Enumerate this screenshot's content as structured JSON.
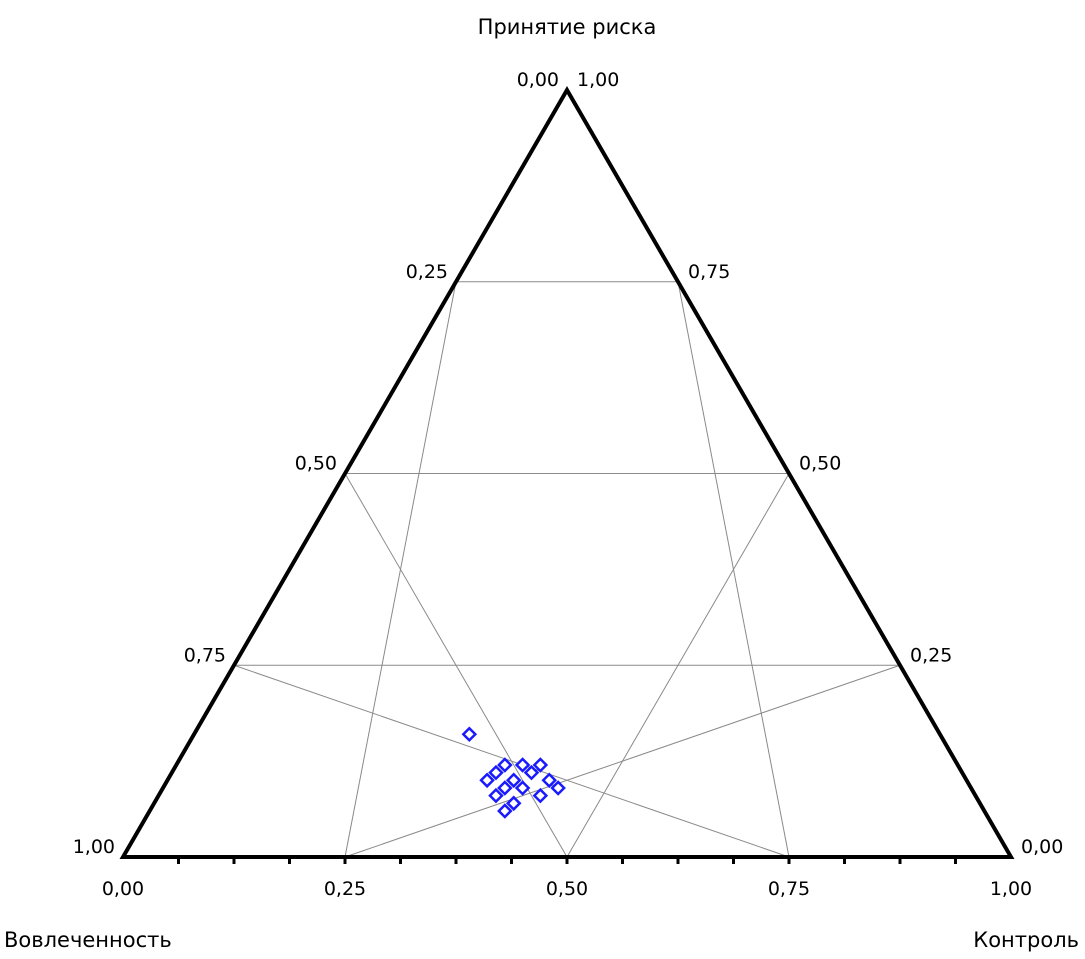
{
  "chart_data": {
    "type": "scatter",
    "subtype": "ternary",
    "axes": {
      "top": {
        "label": "Принятие риска"
      },
      "left": {
        "label": "Вовлеченность"
      },
      "right": {
        "label": "Контроль"
      }
    },
    "left_edge_ticks": [
      "0,00",
      "0,25",
      "0,50",
      "0,75",
      "1,00"
    ],
    "right_edge_ticks": [
      "1,00",
      "0,75",
      "0,50",
      "0,25",
      "0,00"
    ],
    "bottom_edge_ticks": [
      "0,00",
      "0,25",
      "0,50",
      "0,75",
      "1,00"
    ],
    "grid": true,
    "marker": {
      "shape": "diamond-open",
      "color": "#1a1aff"
    },
    "points": [
      {
        "x": 0.39,
        "y": 0.16
      },
      {
        "x": 0.43,
        "y": 0.12
      },
      {
        "x": 0.45,
        "y": 0.12
      },
      {
        "x": 0.47,
        "y": 0.12
      },
      {
        "x": 0.42,
        "y": 0.11
      },
      {
        "x": 0.44,
        "y": 0.1
      },
      {
        "x": 0.46,
        "y": 0.11
      },
      {
        "x": 0.48,
        "y": 0.1
      },
      {
        "x": 0.49,
        "y": 0.09
      },
      {
        "x": 0.41,
        "y": 0.1
      },
      {
        "x": 0.43,
        "y": 0.09
      },
      {
        "x": 0.45,
        "y": 0.09
      },
      {
        "x": 0.47,
        "y": 0.08
      },
      {
        "x": 0.42,
        "y": 0.08
      },
      {
        "x": 0.44,
        "y": 0.07
      },
      {
        "x": 0.43,
        "y": 0.06
      }
    ]
  }
}
